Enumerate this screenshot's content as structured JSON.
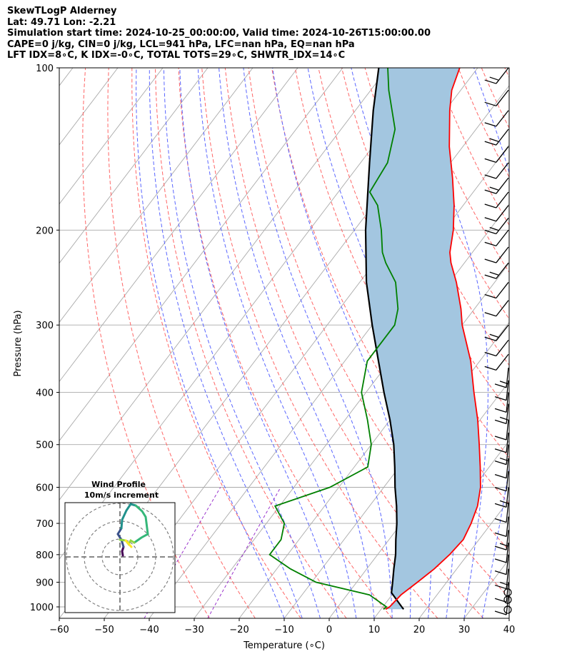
{
  "header": {
    "line1": "SkewTLogP Alderney",
    "line2": "Lat: 49.71   Lon: -2.21",
    "line3": "Simulation start time: 2024-10-25_00:00:00, Valid time: 2024-10-26T15:00:00.00",
    "line4": "CAPE=0 j/kg, CIN=0 j/kg, LCL=941 hPa, LFC=nan hPa, EQ=nan hPa",
    "line5": "LFT IDX=8∘C, K IDX=-0∘C, TOTAL TOTS=29∘C, SHWTR_IDX=14∘C"
  },
  "colors": {
    "temperature": "#ff0000",
    "dewpoint": "#008000",
    "parcel": "#000000",
    "shade": "#a3c6e0",
    "dry_adiabat": "#ff6666",
    "moist_adiabat": "#5a66ff",
    "mixing_ratio": "#9933cc",
    "isotherm": "#aaaaaa"
  },
  "chart_data": {
    "type": "skewt",
    "xlabel": "Temperature (∘C)",
    "ylabel": "Pressure (hPa)",
    "xlim": [
      -60,
      40
    ],
    "ylim": [
      1050,
      100
    ],
    "x_ticks": [
      "−60",
      "−50",
      "−40",
      "−30",
      "−20",
      "−10",
      "0",
      "10",
      "20",
      "30",
      "40"
    ],
    "y_ticks": [
      "100",
      "200",
      "300",
      "400",
      "500",
      "600",
      "700",
      "800",
      "900",
      "1000"
    ],
    "grid": true,
    "temperature": {
      "p": [
        1010,
        1000,
        950,
        900,
        850,
        800,
        750,
        700,
        650,
        600,
        550,
        500,
        450,
        400,
        350,
        300,
        280,
        250,
        230,
        220,
        200,
        180,
        160,
        140,
        120,
        110,
        100
      ],
      "t": [
        11,
        11.5,
        12,
        13.5,
        15,
        16,
        16.5,
        15.5,
        14,
        11.5,
        8,
        4,
        -0.5,
        -6,
        -12,
        -20,
        -23,
        -28.5,
        -33,
        -35,
        -38,
        -42,
        -47,
        -53,
        -59,
        -62,
        -64
      ]
    },
    "dewpoint": {
      "p": [
        1010,
        1000,
        950,
        900,
        850,
        800,
        750,
        700,
        650,
        600,
        550,
        500,
        450,
        400,
        350,
        300,
        280,
        250,
        230,
        220,
        200,
        180,
        170,
        150,
        130,
        110,
        100
      ],
      "t": [
        10.5,
        10.8,
        5,
        -9,
        -17,
        -24,
        -24,
        -26,
        -31,
        -22,
        -17,
        -20,
        -25,
        -31,
        -35,
        -35,
        -37,
        -42,
        -47.5,
        -50,
        -54,
        -59,
        -63,
        -64,
        -68,
        -76,
        -80
      ]
    },
    "parcel": {
      "p": [
        1010,
        1000,
        941,
        900,
        850,
        800,
        750,
        700,
        650,
        600,
        550,
        500,
        450,
        400,
        350,
        300,
        250,
        200,
        150,
        120,
        100
      ],
      "t": [
        15,
        14.2,
        9.5,
        8,
        6,
        4,
        1.5,
        -1,
        -4,
        -7.5,
        -11,
        -15,
        -20,
        -26,
        -32.5,
        -40,
        -48.5,
        -57.5,
        -68,
        -76,
        -82
      ]
    },
    "wind_barbs_hodograph": {
      "title": "Wind Profile",
      "subtitle": "10m/s increment"
    }
  }
}
